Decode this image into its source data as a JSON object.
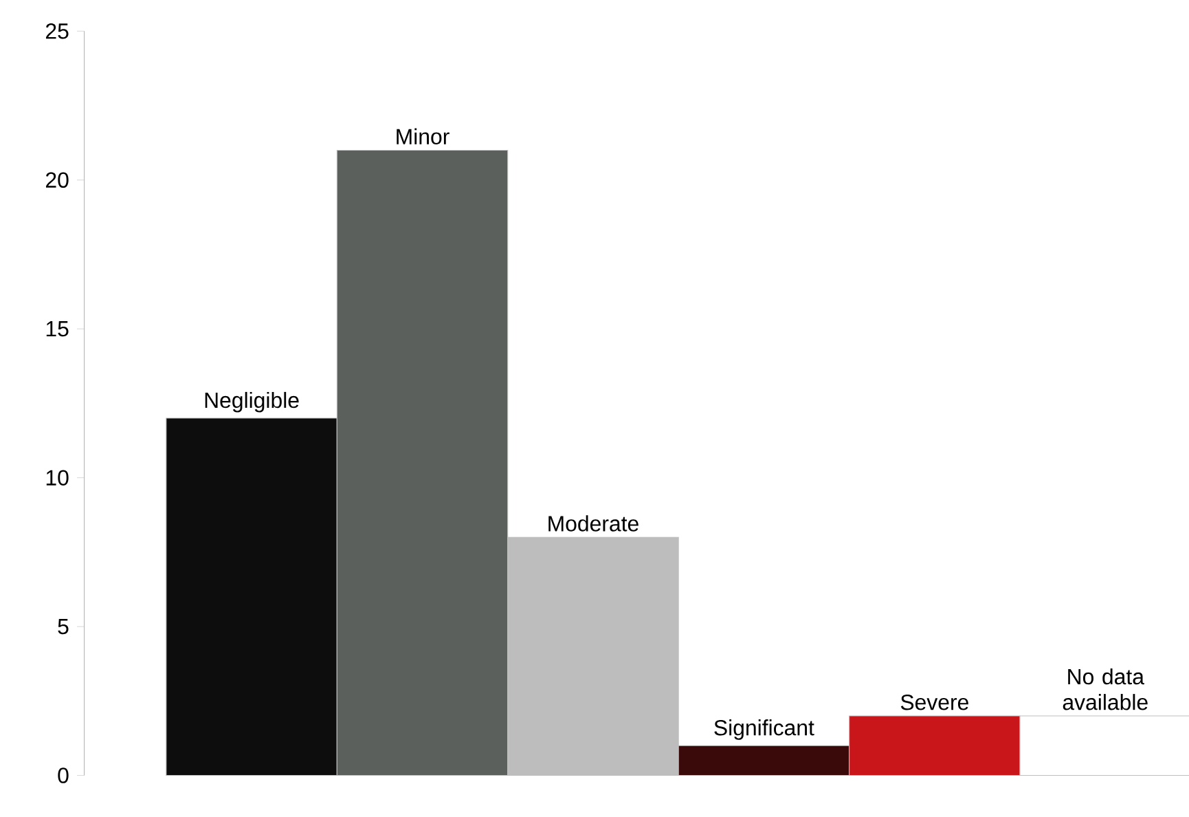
{
  "chart_data": {
    "type": "bar",
    "categories": [
      "Negligible",
      "Minor",
      "Moderate",
      "Significant",
      "Severe",
      "No data available"
    ],
    "values": [
      12,
      21,
      8,
      1,
      2,
      2
    ],
    "colors": [
      "#0d0d0d",
      "#5b605d",
      "#bdbdbd",
      "#3a0a0a",
      "#c8161b",
      "#ffffff"
    ],
    "ylim": [
      0,
      25
    ],
    "yticks": [
      0,
      5,
      10,
      15,
      20,
      25
    ],
    "tick_labels": "y",
    "grid": false
  }
}
